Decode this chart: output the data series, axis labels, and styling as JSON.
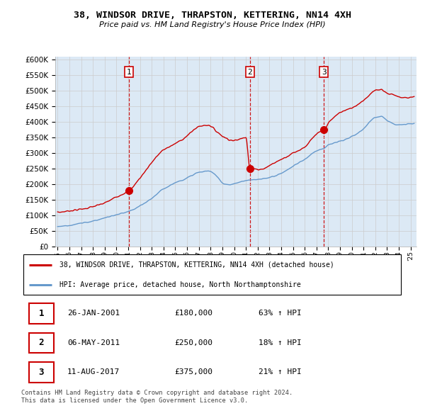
{
  "title": "38, WINDSOR DRIVE, THRAPSTON, KETTERING, NN14 4XH",
  "subtitle": "Price paid vs. HM Land Registry's House Price Index (HPI)",
  "ylabel_ticks": [
    0,
    50000,
    100000,
    150000,
    200000,
    250000,
    300000,
    350000,
    400000,
    450000,
    500000,
    550000,
    600000
  ],
  "ylim": [
    0,
    610000
  ],
  "xlim_start": 1994.8,
  "xlim_end": 2025.5,
  "sale_dates": [
    2001.08,
    2011.35,
    2017.62
  ],
  "sale_prices": [
    180000,
    250000,
    375000
  ],
  "sale_labels": [
    "1",
    "2",
    "3"
  ],
  "sale_info": [
    {
      "label": "1",
      "date": "26-JAN-2001",
      "price": "£180,000",
      "pct": "63% ↑ HPI"
    },
    {
      "label": "2",
      "date": "06-MAY-2011",
      "price": "£250,000",
      "pct": "18% ↑ HPI"
    },
    {
      "label": "3",
      "date": "11-AUG-2017",
      "price": "£375,000",
      "pct": "21% ↑ HPI"
    }
  ],
  "legend_red": "38, WINDSOR DRIVE, THRAPSTON, KETTERING, NN14 4XH (detached house)",
  "legend_blue": "HPI: Average price, detached house, North Northamptonshire",
  "footer": "Contains HM Land Registry data © Crown copyright and database right 2024.\nThis data is licensed under the Open Government Licence v3.0.",
  "red_color": "#cc0000",
  "blue_color": "#6699cc",
  "sale_dot_color": "#cc0000",
  "grid_color": "#cccccc",
  "bg_chart": "#dce9f5",
  "background_color": "#ffffff"
}
